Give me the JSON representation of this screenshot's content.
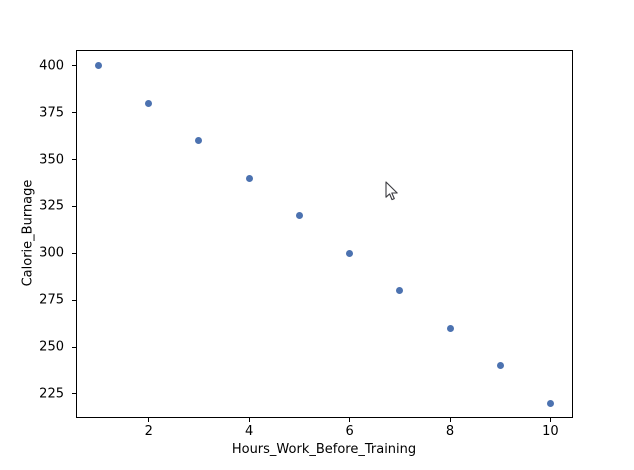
{
  "figure": {
    "background_color": "#ffffff",
    "spine_color": "#000000",
    "text_color": "#000000"
  },
  "chart_data": {
    "type": "scatter",
    "title": "",
    "xlabel": "Hours_Work_Before_Training",
    "ylabel": "Calorie_Burnage",
    "x": [
      1,
      2,
      3,
      4,
      5,
      6,
      7,
      8,
      9,
      10
    ],
    "y": [
      400,
      380,
      360,
      340,
      320,
      300,
      280,
      260,
      240,
      220
    ],
    "xticks": [
      2,
      4,
      6,
      8,
      10
    ],
    "yticks": [
      225,
      250,
      275,
      300,
      325,
      350,
      375,
      400
    ],
    "xlim": [
      0.55,
      10.45
    ],
    "ylim": [
      212.2,
      408.4
    ],
    "grid": false,
    "legend": null,
    "marker_color": "#4c72b0",
    "marker_diameter_px": 7
  },
  "cursor": {
    "type": "arrow-pointer",
    "fill": "#ffffff",
    "outline": "#3a3a3f"
  }
}
